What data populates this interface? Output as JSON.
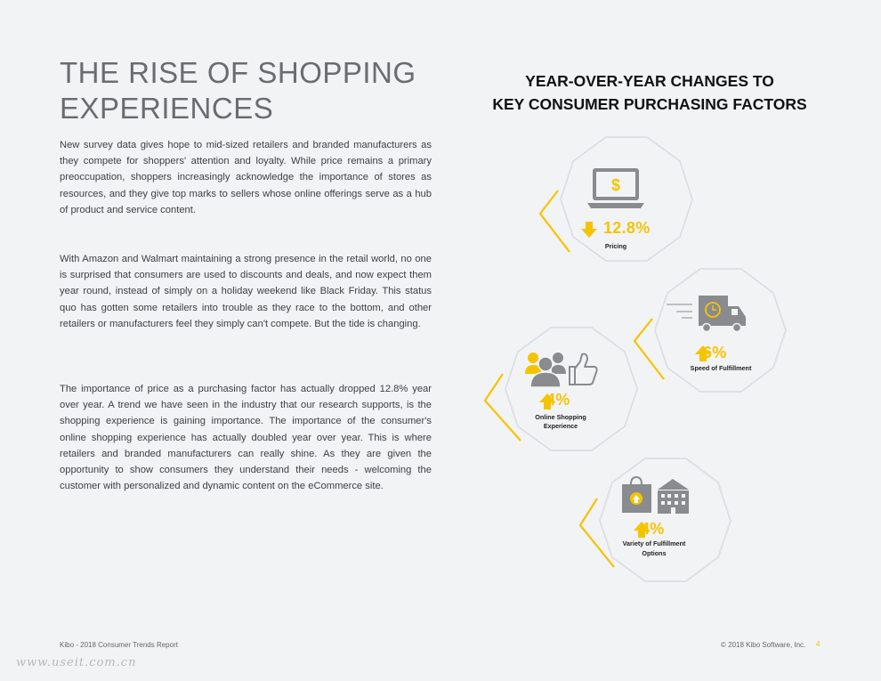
{
  "heading": {
    "line1": "THE RISE OF SHOPPING",
    "line2": "EXPERIENCES"
  },
  "paragraphs": [
    "New survey data gives hope to mid-sized retailers and branded manufacturers as they compete for shoppers' attention and loyalty. While price remains a primary preoccupation, shoppers increasingly acknowledge the importance of stores as resources, and they give top marks to sellers whose online offerings serve as a hub of product and service content.",
    "With Amazon and Walmart maintaining a strong presence in the retail world, no one is surprised that consumers are used to discounts and deals, and now expect them year round, instead of simply on a holiday weekend like Black Friday. This status quo has gotten some retailers into trouble as they race to the bottom, and other retailers or manufacturers feel they simply can't compete. But the tide is changing.",
    "The importance of price as a purchasing factor has actually dropped 12.8% year over year. A trend we have seen in the industry that our research supports, is the shopping experience is gaining importance. The importance of the consumer's online shopping experience has actually doubled year over year.  This is where retailers and branded manufacturers can really shine. As they are given the opportunity to show consumers they understand their needs - welcoming the customer with personalized and dynamic content on the eCommerce site."
  ],
  "chart_data": {
    "type": "infographic",
    "title_line1": "YEAR-OVER-YEAR CHANGES TO",
    "title_line2": "KEY CONSUMER PURCHASING FACTORS",
    "factors": [
      {
        "label": "Pricing",
        "value": "12.8%",
        "direction": "down",
        "icon": "laptop-dollar-icon"
      },
      {
        "label": "Speed of Fulfillment",
        "value": "6%",
        "direction": "up",
        "icon": "delivery-truck-icon"
      },
      {
        "label_line1": "Online Shopping",
        "label_line2": "Experience",
        "value": "4%",
        "direction": "up",
        "icon": "people-thumbs-up-icon"
      },
      {
        "label_line1": "Variety of Fulfillment",
        "label_line2": "Options",
        "value": "4%",
        "direction": "up",
        "icon": "bag-and-store-icon"
      }
    ]
  },
  "colors": {
    "accent": "#f5c400",
    "ring": "#dcdee2",
    "icon": "#8a8b8e"
  },
  "footer": {
    "left": "Kibo - 2018 Consumer Trends Report",
    "right": "© 2018 Kibo Software, Inc.",
    "page": "4"
  },
  "watermark": "www.useit.com.cn"
}
